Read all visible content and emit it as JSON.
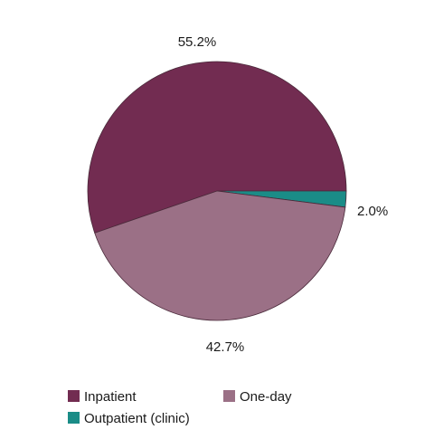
{
  "chart_data": {
    "type": "pie",
    "slices": [
      {
        "label": "Inpatient",
        "value": 55.2,
        "display": "55.2%",
        "color": "#722c51"
      },
      {
        "label": "Outpatient (clinic)",
        "value": 2.0,
        "display": "2.0%",
        "color": "#1a8c87"
      },
      {
        "label": "One-day",
        "value": 42.7,
        "display": "42.7%",
        "color": "#9b7086"
      }
    ],
    "legend": {
      "placement": "bottom",
      "entries": [
        "Inpatient",
        "One-day",
        "Outpatient (clinic)"
      ]
    },
    "stroke_color": "#4a2a3a"
  }
}
